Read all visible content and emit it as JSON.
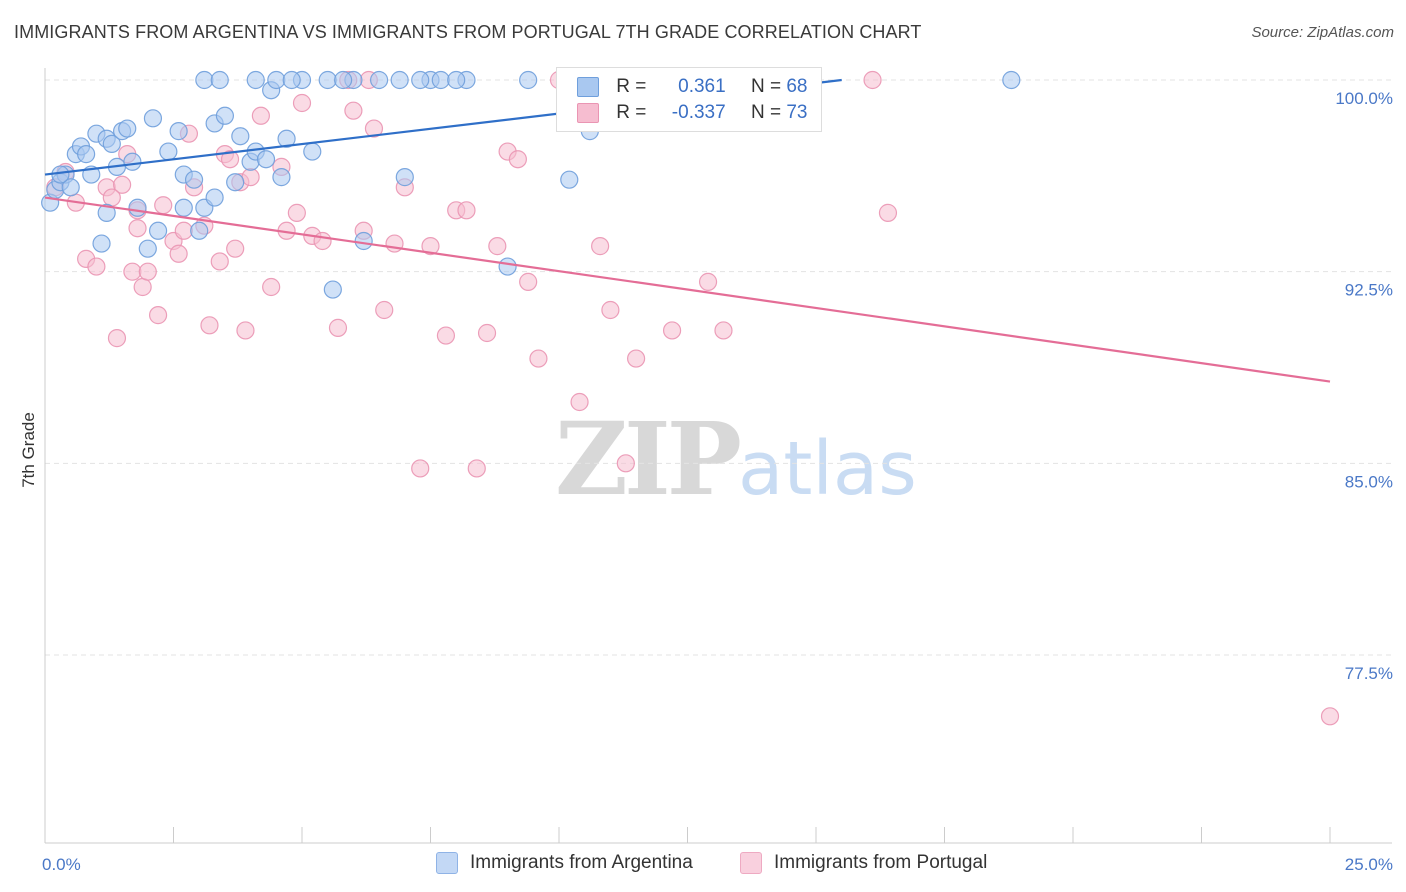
{
  "header": {
    "title": "IMMIGRANTS FROM ARGENTINA VS IMMIGRANTS FROM PORTUGAL 7TH GRADE CORRELATION CHART",
    "source": "Source: ZipAtlas.com"
  },
  "watermark": {
    "zip": "ZIP",
    "atlas": "atlas"
  },
  "legend": {
    "argentina": {
      "r_label": "R =",
      "r_value": "0.361",
      "n_label": "N =",
      "n_value": "68"
    },
    "portugal": {
      "r_label": "R =",
      "r_value": "-0.337",
      "n_label": "N =",
      "n_value": "73"
    }
  },
  "bottom_legend": {
    "argentina": "Immigrants from Argentina",
    "portugal": "Immigrants from Portugal"
  },
  "colors": {
    "argentina_fill": "#a9c8f0",
    "argentina_stroke": "#6f9fdc",
    "argentina_line": "#2f6fc8",
    "portugal_fill": "#f6bdd0",
    "portugal_stroke": "#ea95b3",
    "portugal_line": "#e46d96"
  },
  "chart_data": {
    "type": "scatter",
    "title": "IMMIGRANTS FROM ARGENTINA VS IMMIGRANTS FROM PORTUGAL 7TH GRADE CORRELATION CHART",
    "xlabel": "",
    "ylabel": "7th Grade",
    "xlim": [
      0,
      25
    ],
    "ylim": [
      70.0,
      101.0
    ],
    "y_ticks": [
      77.5,
      85.0,
      92.5,
      100.0
    ],
    "y_tick_labels": [
      "77.5%",
      "85.0%",
      "92.5%",
      "100.0%"
    ],
    "x_tick_labels": [
      "0.0%",
      "25.0%"
    ],
    "grid": true,
    "legend_position": "top-center",
    "series": [
      {
        "name": "Immigrants from Argentina",
        "trend": {
          "x": [
            0.0,
            15.5
          ],
          "y": [
            96.3,
            100.0
          ]
        },
        "points": [
          [
            0.1,
            95.2
          ],
          [
            0.2,
            95.7
          ],
          [
            0.3,
            96.0
          ],
          [
            0.4,
            96.3
          ],
          [
            0.5,
            95.8
          ],
          [
            0.6,
            97.1
          ],
          [
            0.7,
            97.4
          ],
          [
            0.8,
            97.1
          ],
          [
            0.9,
            96.3
          ],
          [
            1.0,
            97.9
          ],
          [
            1.2,
            97.7
          ],
          [
            1.3,
            97.5
          ],
          [
            1.4,
            96.6
          ],
          [
            1.5,
            98.0
          ],
          [
            1.6,
            98.1
          ],
          [
            1.7,
            96.8
          ],
          [
            1.8,
            95.0
          ],
          [
            2.1,
            98.5
          ],
          [
            2.4,
            97.2
          ],
          [
            2.6,
            98.0
          ],
          [
            2.7,
            96.3
          ],
          [
            2.9,
            96.1
          ],
          [
            3.1,
            95.0
          ],
          [
            3.3,
            98.3
          ],
          [
            3.5,
            98.6
          ],
          [
            3.7,
            96.0
          ],
          [
            3.8,
            97.8
          ],
          [
            4.0,
            96.8
          ],
          [
            4.1,
            97.2
          ],
          [
            4.3,
            96.9
          ],
          [
            4.4,
            99.6
          ],
          [
            4.5,
            100.0
          ],
          [
            4.6,
            96.2
          ],
          [
            4.7,
            97.7
          ],
          [
            5.0,
            100.0
          ],
          [
            5.2,
            97.2
          ],
          [
            5.5,
            100.0
          ],
          [
            6.0,
            100.0
          ],
          [
            6.2,
            93.7
          ],
          [
            6.5,
            100.0
          ],
          [
            6.9,
            100.0
          ],
          [
            7.0,
            96.2
          ],
          [
            7.5,
            100.0
          ],
          [
            7.7,
            100.0
          ],
          [
            8.2,
            100.0
          ],
          [
            9.0,
            92.7
          ],
          [
            9.4,
            100.0
          ],
          [
            10.2,
            100.0
          ],
          [
            10.2,
            96.1
          ],
          [
            10.6,
            98.0
          ],
          [
            18.8,
            100.0
          ],
          [
            4.1,
            100.0
          ],
          [
            3.1,
            100.0
          ],
          [
            2.2,
            94.1
          ],
          [
            2.0,
            93.4
          ],
          [
            1.1,
            93.6
          ],
          [
            1.2,
            94.8
          ],
          [
            2.7,
            95.0
          ],
          [
            3.0,
            94.1
          ],
          [
            3.3,
            95.4
          ],
          [
            3.4,
            100.0
          ],
          [
            4.8,
            100.0
          ],
          [
            5.6,
            91.8
          ],
          [
            5.8,
            100.0
          ],
          [
            7.3,
            100.0
          ],
          [
            8.0,
            100.0
          ],
          [
            11.0,
            100.0
          ],
          [
            0.3,
            96.3
          ]
        ]
      },
      {
        "name": "Immigrants from Portugal",
        "trend": {
          "x": [
            0.0,
            25.0
          ],
          "y": [
            95.4,
            88.2
          ]
        },
        "points": [
          [
            0.2,
            95.8
          ],
          [
            0.4,
            96.4
          ],
          [
            0.6,
            95.2
          ],
          [
            0.8,
            93.0
          ],
          [
            1.0,
            92.7
          ],
          [
            1.2,
            95.8
          ],
          [
            1.4,
            89.9
          ],
          [
            1.5,
            95.9
          ],
          [
            1.6,
            97.1
          ],
          [
            1.7,
            92.5
          ],
          [
            1.8,
            94.2
          ],
          [
            1.9,
            91.9
          ],
          [
            2.0,
            92.5
          ],
          [
            2.2,
            90.8
          ],
          [
            2.3,
            95.1
          ],
          [
            2.5,
            93.7
          ],
          [
            2.6,
            93.2
          ],
          [
            2.7,
            94.1
          ],
          [
            2.8,
            97.9
          ],
          [
            2.9,
            95.8
          ],
          [
            3.1,
            94.3
          ],
          [
            3.2,
            90.4
          ],
          [
            3.4,
            92.9
          ],
          [
            3.5,
            97.1
          ],
          [
            3.7,
            93.4
          ],
          [
            3.8,
            96.0
          ],
          [
            3.9,
            90.2
          ],
          [
            4.0,
            96.2
          ],
          [
            4.2,
            98.6
          ],
          [
            4.4,
            91.9
          ],
          [
            4.6,
            96.6
          ],
          [
            4.7,
            94.1
          ],
          [
            4.9,
            94.8
          ],
          [
            5.0,
            99.1
          ],
          [
            5.2,
            93.9
          ],
          [
            5.4,
            93.7
          ],
          [
            5.7,
            90.3
          ],
          [
            5.9,
            100.0
          ],
          [
            6.0,
            98.8
          ],
          [
            6.2,
            94.1
          ],
          [
            6.4,
            98.1
          ],
          [
            6.6,
            91.0
          ],
          [
            6.8,
            93.6
          ],
          [
            7.0,
            95.8
          ],
          [
            7.3,
            84.8
          ],
          [
            7.5,
            93.5
          ],
          [
            7.8,
            90.0
          ],
          [
            8.0,
            94.9
          ],
          [
            8.2,
            94.9
          ],
          [
            8.4,
            84.8
          ],
          [
            8.6,
            90.1
          ],
          [
            8.8,
            93.5
          ],
          [
            9.0,
            97.2
          ],
          [
            9.2,
            96.9
          ],
          [
            9.4,
            92.1
          ],
          [
            9.6,
            89.1
          ],
          [
            10.0,
            100.0
          ],
          [
            10.4,
            87.4
          ],
          [
            10.8,
            93.5
          ],
          [
            11.0,
            91.0
          ],
          [
            11.3,
            85.0
          ],
          [
            11.5,
            89.1
          ],
          [
            12.2,
            90.2
          ],
          [
            12.9,
            92.1
          ],
          [
            13.2,
            90.2
          ],
          [
            13.7,
            100.0
          ],
          [
            16.1,
            100.0
          ],
          [
            16.4,
            94.8
          ],
          [
            25.0,
            75.1
          ],
          [
            1.3,
            95.4
          ],
          [
            3.6,
            96.9
          ],
          [
            6.3,
            100.0
          ],
          [
            1.8,
            94.9
          ]
        ]
      }
    ]
  }
}
